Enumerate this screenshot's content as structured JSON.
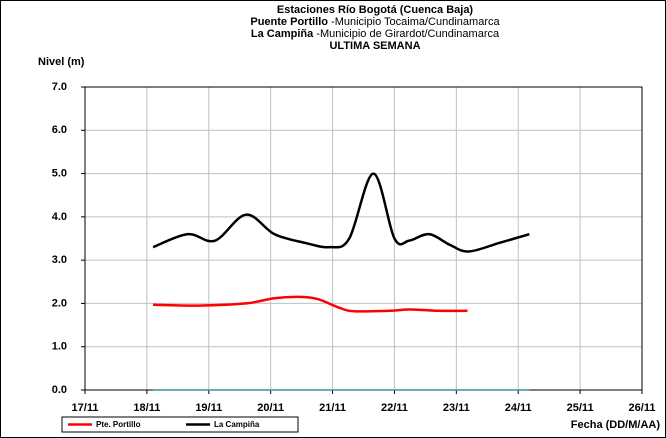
{
  "chart_data": {
    "type": "line",
    "title": [
      "Estaciones Río Bogotá (Cuenca Baja)",
      "ULTIMA SEMANA"
    ],
    "subtitle": [
      [
        "Puente Portillo",
        " -Municipio Tocaima/Cundinamarca"
      ],
      [
        "La Campiña",
        " -Municipio de Girardot/Cundinamarca"
      ]
    ],
    "ylabel": "Nivel (m)",
    "xlabel": "Fecha (DD/M/AA)",
    "series": [
      {
        "name": "Pte. Portillo",
        "color": "#ff0000",
        "x": [
          18.1,
          18.85,
          19.6,
          20.06,
          20.47,
          20.76,
          21.11,
          21.35,
          21.92,
          22.24,
          22.72,
          23.18
        ],
        "values": [
          1.97,
          1.95,
          2.0,
          2.12,
          2.15,
          2.1,
          1.9,
          1.82,
          1.83,
          1.86,
          1.83,
          1.83
        ]
      },
      {
        "name": "La Campiña",
        "color": "#000000",
        "x": [
          18.1,
          18.66,
          19.1,
          19.6,
          20.06,
          20.55,
          20.95,
          21.27,
          21.66,
          22.0,
          22.24,
          22.56,
          22.9,
          23.2,
          23.7,
          24.18
        ],
        "values": [
          3.3,
          3.6,
          3.45,
          4.05,
          3.6,
          3.4,
          3.3,
          3.5,
          5.0,
          3.5,
          3.45,
          3.6,
          3.35,
          3.2,
          3.4,
          3.6
        ]
      },
      {
        "color": "#339999",
        "x": [
          18.1,
          24.18
        ],
        "values": [
          0,
          0
        ]
      }
    ],
    "xlim": [
      17,
      26
    ],
    "xticks": [
      {
        "value": 17,
        "label": "17/11"
      },
      {
        "value": 18,
        "label": "18/11"
      },
      {
        "value": 19,
        "label": "19/11"
      },
      {
        "value": 20,
        "label": "20/11"
      },
      {
        "value": 21,
        "label": "21/11"
      },
      {
        "value": 22,
        "label": "22/11"
      },
      {
        "value": 23,
        "label": "23/11"
      },
      {
        "value": 24,
        "label": "24/11"
      },
      {
        "value": 25,
        "label": "25/11"
      },
      {
        "value": 26,
        "label": "26/11"
      }
    ],
    "ylim": [
      0,
      7
    ],
    "yticks": [
      {
        "value": 0,
        "label": "0.0"
      },
      {
        "value": 1,
        "label": "1.0"
      },
      {
        "value": 2,
        "label": "2.0"
      },
      {
        "value": 3,
        "label": "3.0"
      },
      {
        "value": 4,
        "label": "4.0"
      },
      {
        "value": 5,
        "label": "5.0"
      },
      {
        "value": 6,
        "label": "6.0"
      },
      {
        "value": 7,
        "label": "7.0"
      }
    ],
    "grid": true,
    "legend": "bottom-left"
  }
}
